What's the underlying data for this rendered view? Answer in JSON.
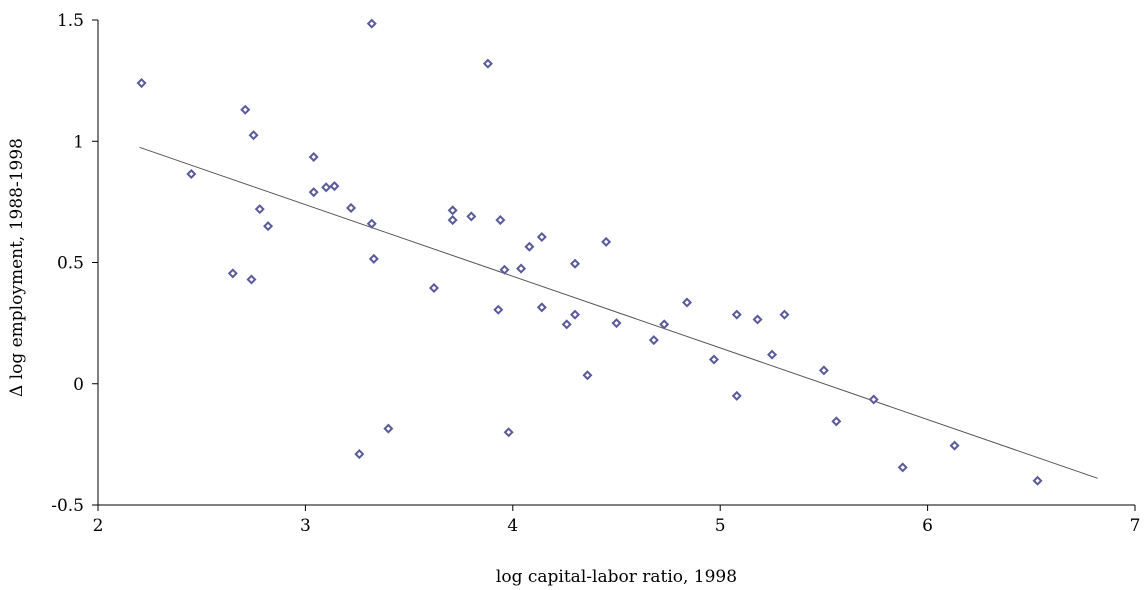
{
  "chart_data": {
    "type": "scatter",
    "xlabel": "log capital-labor ratio, 1998",
    "ylabel": "Δ log employment, 1988-1998",
    "xlim": [
      2,
      7
    ],
    "ylim": [
      -0.5,
      1.5
    ],
    "x_ticks": [
      2,
      3,
      4,
      5,
      6,
      7
    ],
    "x_tick_labels": [
      "2",
      "3",
      "4",
      "5",
      "6",
      "7"
    ],
    "y_ticks": [
      -0.5,
      0,
      0.5,
      1,
      1.5
    ],
    "y_tick_labels": [
      "-0.5",
      "0",
      "0.5",
      "1",
      "1.5"
    ],
    "grid": false,
    "marker": "diamond",
    "marker_color": "#5a5a9a",
    "trendline": {
      "x": [
        2.2,
        6.82
      ],
      "y": [
        0.975,
        -0.39
      ],
      "color": "#555555"
    },
    "points": [
      {
        "x": 2.21,
        "y": 1.24
      },
      {
        "x": 2.45,
        "y": 0.865
      },
      {
        "x": 2.65,
        "y": 0.455
      },
      {
        "x": 2.71,
        "y": 1.13
      },
      {
        "x": 2.74,
        "y": 0.43
      },
      {
        "x": 2.75,
        "y": 1.025
      },
      {
        "x": 2.78,
        "y": 0.72
      },
      {
        "x": 2.82,
        "y": 0.65
      },
      {
        "x": 3.04,
        "y": 0.935
      },
      {
        "x": 3.04,
        "y": 0.79
      },
      {
        "x": 3.1,
        "y": 0.81
      },
      {
        "x": 3.14,
        "y": 0.815
      },
      {
        "x": 3.22,
        "y": 0.725
      },
      {
        "x": 3.26,
        "y": -0.29
      },
      {
        "x": 3.32,
        "y": 1.485
      },
      {
        "x": 3.32,
        "y": 0.66
      },
      {
        "x": 3.33,
        "y": 0.515
      },
      {
        "x": 3.4,
        "y": -0.185
      },
      {
        "x": 3.62,
        "y": 0.395
      },
      {
        "x": 3.71,
        "y": 0.715
      },
      {
        "x": 3.71,
        "y": 0.675
      },
      {
        "x": 3.8,
        "y": 0.69
      },
      {
        "x": 3.88,
        "y": 1.32
      },
      {
        "x": 3.93,
        "y": 0.305
      },
      {
        "x": 3.94,
        "y": 0.675
      },
      {
        "x": 3.96,
        "y": 0.47
      },
      {
        "x": 3.98,
        "y": -0.2
      },
      {
        "x": 4.04,
        "y": 0.475
      },
      {
        "x": 4.08,
        "y": 0.565
      },
      {
        "x": 4.14,
        "y": 0.315
      },
      {
        "x": 4.14,
        "y": 0.605
      },
      {
        "x": 4.26,
        "y": 0.245
      },
      {
        "x": 4.3,
        "y": 0.285
      },
      {
        "x": 4.3,
        "y": 0.495
      },
      {
        "x": 4.36,
        "y": 0.035
      },
      {
        "x": 4.45,
        "y": 0.585
      },
      {
        "x": 4.5,
        "y": 0.25
      },
      {
        "x": 4.68,
        "y": 0.18
      },
      {
        "x": 4.73,
        "y": 0.245
      },
      {
        "x": 4.84,
        "y": 0.335
      },
      {
        "x": 4.97,
        "y": 0.1
      },
      {
        "x": 5.08,
        "y": -0.05
      },
      {
        "x": 5.08,
        "y": 0.285
      },
      {
        "x": 5.18,
        "y": 0.265
      },
      {
        "x": 5.25,
        "y": 0.12
      },
      {
        "x": 5.31,
        "y": 0.285
      },
      {
        "x": 5.5,
        "y": 0.055
      },
      {
        "x": 5.56,
        "y": -0.155
      },
      {
        "x": 5.74,
        "y": -0.065
      },
      {
        "x": 5.88,
        "y": -0.345
      },
      {
        "x": 6.13,
        "y": -0.255
      },
      {
        "x": 6.53,
        "y": -0.4
      }
    ]
  }
}
